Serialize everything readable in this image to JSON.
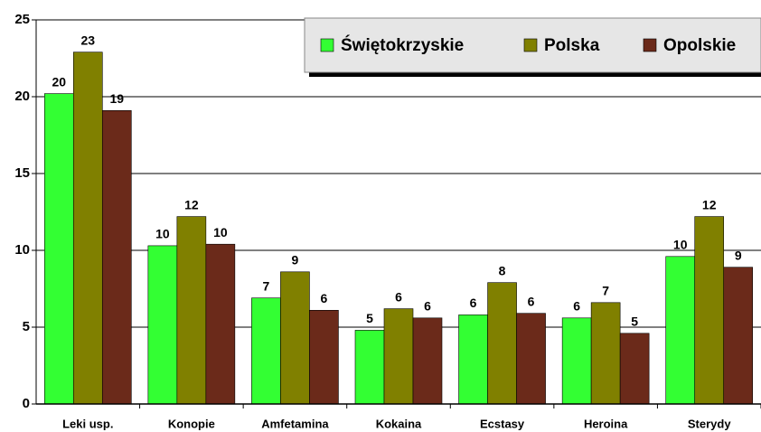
{
  "chart_data": {
    "type": "bar",
    "categories": [
      "Leki usp.",
      "Konopie",
      "Amfetamina",
      "Kokaina",
      "Ecstasy",
      "Heroina",
      "Sterydy"
    ],
    "series": [
      {
        "name": "Świętokrzyskie",
        "color": "#33ff33",
        "values": [
          20.2,
          10.3,
          6.9,
          4.8,
          5.8,
          5.6,
          9.6
        ],
        "value_labels": [
          "20",
          "10",
          "7",
          "5",
          "6",
          "6",
          "10"
        ]
      },
      {
        "name": "Polska",
        "color": "#808000",
        "values": [
          22.9,
          12.2,
          8.6,
          6.2,
          7.9,
          6.6,
          12.2
        ],
        "value_labels": [
          "23",
          "12",
          "9",
          "6",
          "8",
          "7",
          "12"
        ]
      },
      {
        "name": "Opolskie",
        "color": "#6b2a1a",
        "values": [
          19.1,
          10.4,
          6.1,
          5.6,
          5.9,
          4.6,
          8.9
        ],
        "value_labels": [
          "19",
          "10",
          "6",
          "6",
          "6",
          "5",
          "9"
        ]
      }
    ],
    "ylim": [
      0,
      25
    ],
    "yticks": [
      0,
      5,
      10,
      15,
      20,
      25
    ],
    "grid": true,
    "legend": "upper right"
  }
}
